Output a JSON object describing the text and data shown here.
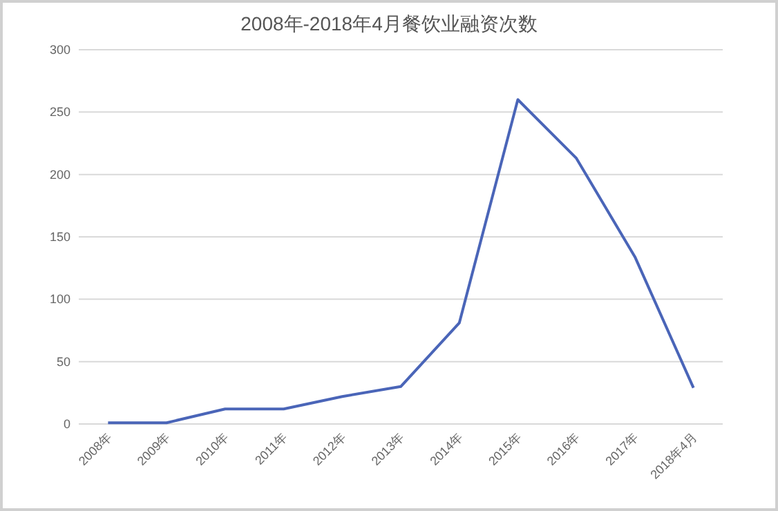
{
  "chart_data": {
    "type": "line",
    "title": "2008年-2018年4月餐饮业融资次数",
    "categories": [
      "2008年",
      "2009年",
      "2010年",
      "2011年",
      "2012年",
      "2013年",
      "2014年",
      "2015年",
      "2016年",
      "2017年",
      "2018年4月"
    ],
    "values": [
      1,
      1,
      12,
      12,
      22,
      30,
      81,
      260,
      213,
      134,
      29
    ],
    "color": "#4a65b8",
    "ylim": [
      0,
      300
    ],
    "yticks": [
      0,
      50,
      100,
      150,
      200,
      250,
      300
    ],
    "grid": "y"
  }
}
